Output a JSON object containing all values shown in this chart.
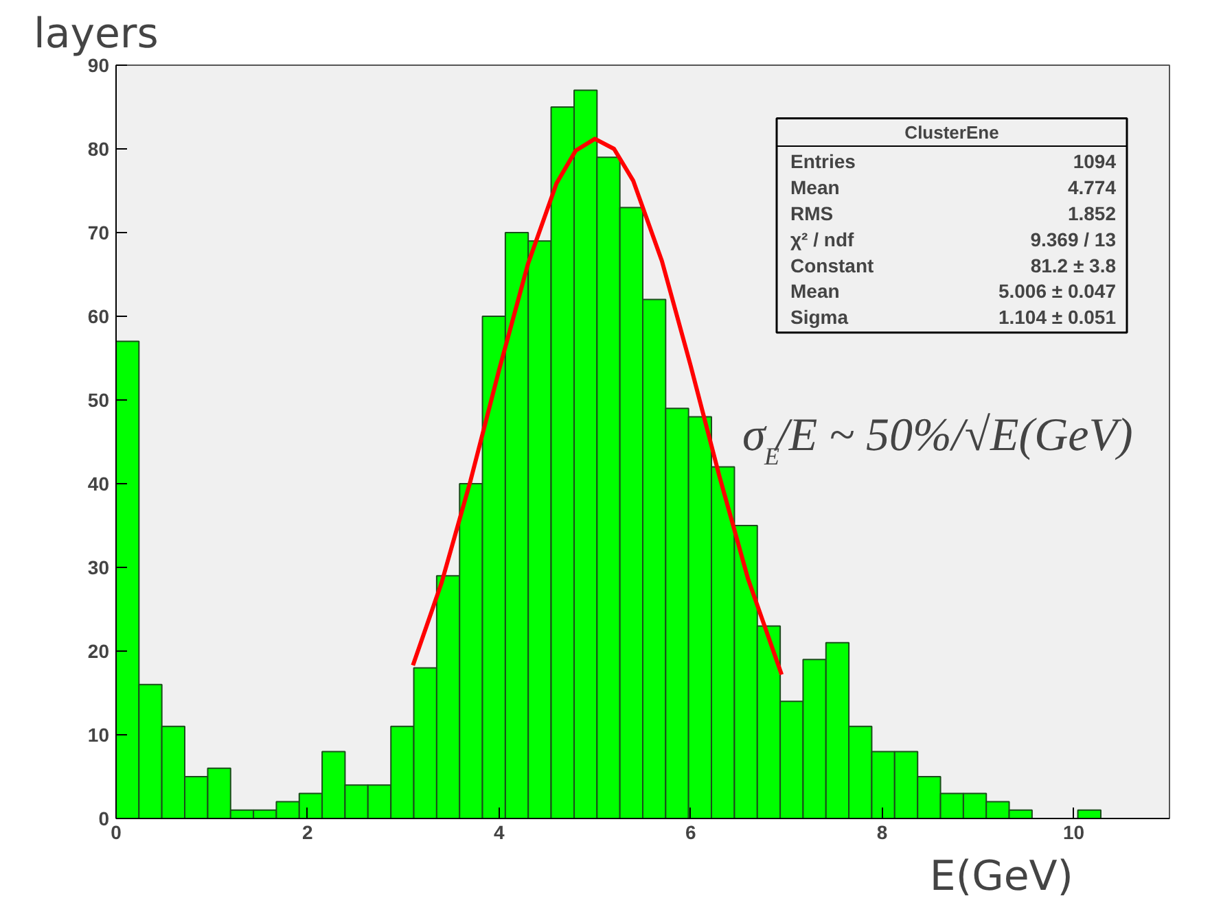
{
  "chart_data": {
    "type": "histogram",
    "xlabel": "E(GeV)",
    "color": "#00ff00",
    "bins": [
      0,
      0.239,
      0.478,
      0.717,
      0.957,
      1.196,
      1.435,
      1.674,
      1.913,
      2.152,
      2.391,
      2.63,
      2.87,
      3.109,
      3.348,
      3.587,
      3.826,
      4.065,
      4.304,
      4.543,
      4.783,
      5.022,
      5.261,
      5.5,
      5.739,
      5.978,
      6.217,
      6.457,
      6.696,
      6.935,
      7.174,
      7.413,
      7.652,
      7.891,
      8.13,
      8.37,
      8.609,
      8.848,
      9.087,
      9.326,
      9.565,
      9.804,
      10.043,
      10.283,
      10.522,
      10.761,
      11
    ],
    "values": [
      57,
      16,
      11,
      5,
      6,
      1,
      1,
      2,
      3,
      8,
      4,
      4,
      11,
      18,
      29,
      40,
      60,
      70,
      69,
      85,
      87,
      79,
      73,
      62,
      49,
      48,
      42,
      35,
      23,
      14,
      19,
      21,
      11,
      8,
      8,
      5,
      3,
      3,
      2,
      1,
      0,
      0,
      1,
      0,
      0,
      0
    ],
    "series": [
      {
        "type": "line",
        "color": "#ff0000",
        "x": [
          3.1,
          3.4,
          3.7,
          4.0,
          4.3,
          4.6,
          4.8,
          5.0,
          5.2,
          5.4,
          5.7,
          6.0,
          6.3,
          6.6,
          6.95
        ],
        "values": [
          18.3,
          28.2,
          40.3,
          53.6,
          66.2,
          75.9,
          79.8,
          81.2,
          80.0,
          76.2,
          66.6,
          54.1,
          40.9,
          28.6,
          17.2
        ]
      }
    ],
    "xlim": [
      0,
      11
    ],
    "ylim": [
      0,
      90
    ],
    "xticks": [
      0,
      2,
      4,
      6,
      8,
      10
    ],
    "yticks": [
      0,
      10,
      20,
      30,
      40,
      50,
      60,
      70,
      80,
      90
    ],
    "grid": false,
    "annotations": [
      "layers",
      "σ$_{E}$/E ~ 50%/√E(GeV)",
      "ClusterEne",
      "Entries\t1094",
      "Mean\t4.774",
      "RMS\t1.852",
      "χ² / ndf\t9.369 / 13",
      "Constant\t81.2 ± 3.8",
      "Mean\t5.006 ± 0.047",
      "Sigma\t1.104 ± 0.051"
    ]
  }
}
